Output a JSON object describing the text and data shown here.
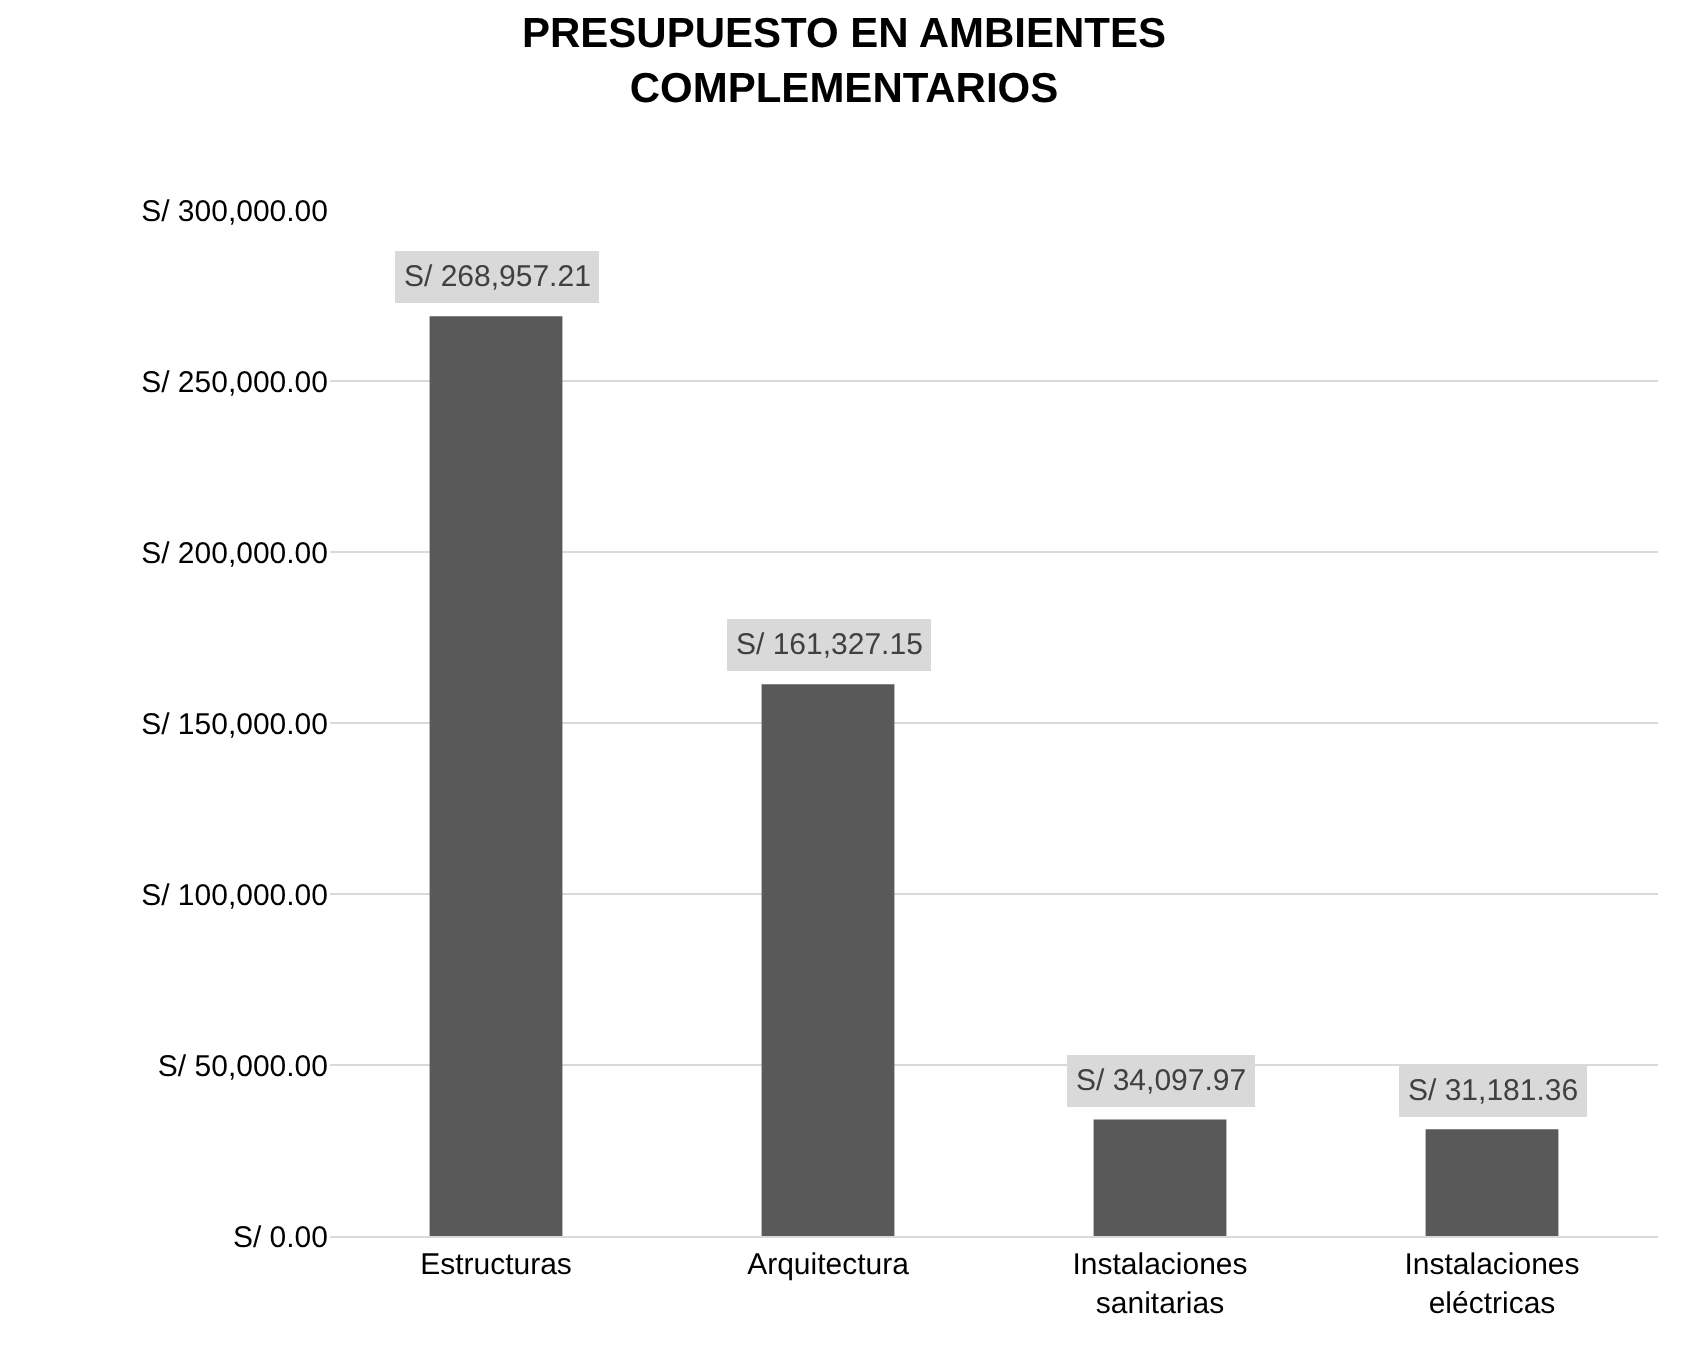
{
  "chart_data": {
    "type": "bar",
    "title": "PRESUPUESTO EN AMBIENTES\nCOMPLEMENTARIOS",
    "categories": [
      "Estructuras",
      "Arquitectura",
      "Instalaciones\nsanitarias",
      "Instalaciones\neléctricas"
    ],
    "values": [
      268957.21,
      161327.15,
      34097.97,
      31181.36
    ],
    "value_labels": [
      "S/ 268,957.21",
      "S/ 161,327.15",
      "S/ 34,097.97",
      "S/ 31,181.36"
    ],
    "color": "#595959",
    "ylim": [
      0,
      300000
    ],
    "yticks": [
      {
        "value": 0,
        "label": "S/ 0.00"
      },
      {
        "value": 50000,
        "label": "S/ 50,000.00"
      },
      {
        "value": 100000,
        "label": "S/ 100,000.00"
      },
      {
        "value": 150000,
        "label": "S/ 150,000.00"
      },
      {
        "value": 200000,
        "label": "S/ 200,000.00"
      },
      {
        "value": 250000,
        "label": "S/ 250,000.00"
      },
      {
        "value": 300000,
        "label": "S/ 300,000.00"
      }
    ],
    "grid": "y",
    "legend": false
  }
}
